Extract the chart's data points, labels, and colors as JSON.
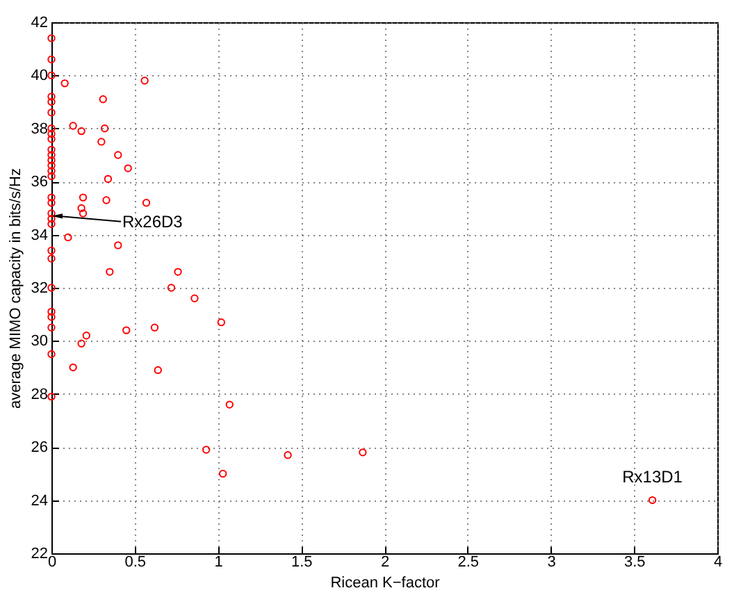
{
  "chart_data": {
    "type": "scatter",
    "xlabel": "Ricean K−factor",
    "ylabel": "average MIMO capacity in bits/s/Hz",
    "xlim": [
      0,
      4
    ],
    "xticks": [
      0,
      0.5,
      1,
      1.5,
      2,
      2.5,
      3,
      3.5,
      4
    ],
    "ylim": [
      22,
      42
    ],
    "yticks": [
      22,
      24,
      26,
      28,
      30,
      32,
      34,
      36,
      38,
      40,
      42
    ],
    "grid": true,
    "marker": "circle",
    "annotations": [
      {
        "text": "Rx26D3",
        "x": 0,
        "y": 34.7
      },
      {
        "text": "Rx13D1",
        "x": 3.61,
        "y": 24.0
      }
    ],
    "series": [
      {
        "color": "#ff0000",
        "x": [
          0,
          0,
          0,
          0,
          0,
          0,
          0,
          0,
          0,
          0,
          0,
          0,
          0,
          0,
          0,
          0,
          0,
          0,
          0,
          0,
          0,
          0,
          0,
          0,
          0,
          0,
          0,
          0,
          0.08,
          0.13,
          0.18,
          0.31,
          0.3,
          0.32,
          0.4,
          0.46,
          0.56,
          0.34,
          0.57,
          0.33,
          0.19,
          0.18,
          0.19,
          0.1,
          0.4,
          0.35,
          0.72,
          0.76,
          0.86,
          1.02,
          0.62,
          0.45,
          0.21,
          0.18,
          0.13,
          0.64,
          1.07,
          0.93,
          1.03,
          1.42,
          1.87,
          3.61
        ],
        "values": [
          41.4,
          40.6,
          40.0,
          39.2,
          39.0,
          38.6,
          38.0,
          37.8,
          37.6,
          37.2,
          37.0,
          36.8,
          36.6,
          36.4,
          36.2,
          35.4,
          35.2,
          34.8,
          34.6,
          34.4,
          33.4,
          33.1,
          32.0,
          31.1,
          30.9,
          30.5,
          29.5,
          27.9,
          39.7,
          38.1,
          37.9,
          39.1,
          37.5,
          38.0,
          37.0,
          36.5,
          39.8,
          36.1,
          35.2,
          35.3,
          35.4,
          35.0,
          34.8,
          33.9,
          33.6,
          32.6,
          32.0,
          32.6,
          31.6,
          30.7,
          30.5,
          30.4,
          30.2,
          29.9,
          29.0,
          28.9,
          27.6,
          25.9,
          25.0,
          25.7,
          25.8,
          24.0
        ]
      }
    ]
  }
}
